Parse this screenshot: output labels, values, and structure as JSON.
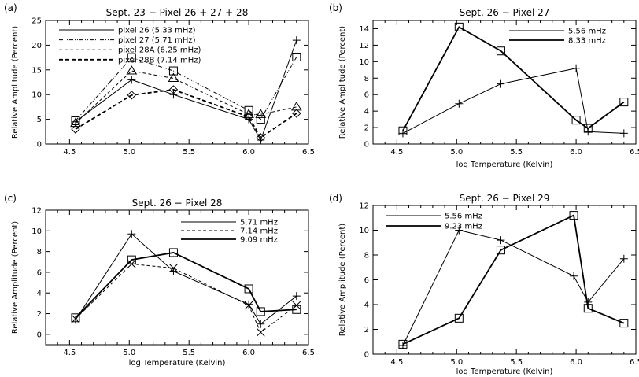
{
  "chart_data": [
    {
      "type": "line",
      "panel_label": "(a)",
      "title": "Sept. 23 − Pixel 26 + 27 + 28",
      "xlabel": "",
      "ylabel": "Relative Amplitude (Percent)",
      "xlim": [
        4.3,
        6.5
      ],
      "ylim": [
        0,
        25
      ],
      "xticks": [
        4.5,
        5.0,
        5.5,
        6.0,
        6.5
      ],
      "xtick_labels": [
        "4.5",
        "5.0",
        "5.5",
        "6.0",
        "6.5"
      ],
      "yticks": [
        0,
        5,
        10,
        15,
        20,
        25
      ],
      "ytick_labels": [
        "0",
        "5",
        "10",
        "15",
        "20",
        "25"
      ],
      "legend_position": "top-right",
      "series": [
        {
          "name": "pixel 26 (5.33 mHz)",
          "line": "solid",
          "marker": "plus",
          "x": [
            4.55,
            5.02,
            5.37,
            6.0,
            6.1,
            6.4
          ],
          "y": [
            4.5,
            13.0,
            10.0,
            5.0,
            0.8,
            21.0
          ]
        },
        {
          "name": "pixel 27 (5.71 mHz)",
          "line": "dashdotdot",
          "marker": "square",
          "x": [
            4.55,
            5.02,
            5.37,
            6.0,
            6.1,
            6.4
          ],
          "y": [
            4.7,
            17.5,
            14.8,
            6.8,
            5.0,
            17.6
          ]
        },
        {
          "name": "pixel 28A (6.25 mHz)",
          "line": "dashed",
          "marker": "triangle",
          "x": [
            4.55,
            5.02,
            5.37,
            6.0,
            6.1,
            6.4
          ],
          "y": [
            4.2,
            14.8,
            13.3,
            6.0,
            6.0,
            7.5
          ]
        },
        {
          "name": "pixel 28B (7.14 mHz)",
          "line": "dashed-thick",
          "marker": "diamond",
          "x": [
            4.55,
            5.02,
            5.37,
            6.0,
            6.1,
            6.4
          ],
          "y": [
            3.0,
            9.9,
            11.0,
            5.5,
            1.3,
            6.2
          ]
        }
      ]
    },
    {
      "type": "line",
      "panel_label": "(b)",
      "title": "Sept. 26 − Pixel 27",
      "xlabel": "log Temperature (Kelvin)",
      "ylabel": "Relative Amplitude (Percent)",
      "xlim": [
        4.3,
        6.5
      ],
      "ylim": [
        0,
        15
      ],
      "xticks": [
        4.5,
        5.0,
        5.5,
        6.0,
        6.5
      ],
      "xtick_labels": [
        "4.5",
        "5.0",
        "5.5",
        "6.0",
        "6.5"
      ],
      "yticks": [
        0,
        2,
        4,
        6,
        8,
        10,
        12,
        14
      ],
      "ytick_labels": [
        "0",
        "2",
        "4",
        "6",
        "8",
        "10",
        "12",
        "14"
      ],
      "legend_position": "top-right",
      "series": [
        {
          "name": "5.56 mHz",
          "line": "solid",
          "marker": "plus",
          "x": [
            4.55,
            5.02,
            5.37,
            6.0,
            6.1,
            6.4
          ],
          "y": [
            1.3,
            4.9,
            7.3,
            9.2,
            1.5,
            1.3
          ]
        },
        {
          "name": "8.33 mHz",
          "line": "thick",
          "marker": "square",
          "x": [
            4.55,
            5.02,
            5.37,
            6.0,
            6.1,
            6.4
          ],
          "y": [
            1.6,
            14.2,
            11.3,
            2.9,
            1.9,
            5.1
          ]
        }
      ]
    },
    {
      "type": "line",
      "panel_label": "(c)",
      "title": "Sept. 26 − Pixel 28",
      "xlabel": "log Temperature (Kelvin)",
      "ylabel": "Relative Amplitude (Percent)",
      "xlim": [
        4.3,
        6.5
      ],
      "ylim": [
        -1,
        12
      ],
      "xticks": [
        4.5,
        5.0,
        5.5,
        6.0,
        6.5
      ],
      "xtick_labels": [
        "4.5",
        "5.0",
        "5.5",
        "6.0",
        "6.5"
      ],
      "yticks": [
        0,
        2,
        4,
        6,
        8,
        10,
        12
      ],
      "ytick_labels": [
        "0",
        "2",
        "4",
        "6",
        "8",
        "10",
        "12"
      ],
      "legend_position": "top-right",
      "series": [
        {
          "name": "5.71 mHz",
          "line": "solid",
          "marker": "plus",
          "x": [
            4.55,
            5.02,
            5.37,
            6.0,
            6.1,
            6.4
          ],
          "y": [
            1.4,
            9.7,
            6.1,
            2.9,
            1.0,
            3.7
          ]
        },
        {
          "name": "7.14 mHz",
          "line": "dashed",
          "marker": "cross",
          "x": [
            4.55,
            5.02,
            5.37,
            6.0,
            6.1,
            6.4
          ],
          "y": [
            1.5,
            6.8,
            6.4,
            2.8,
            0.2,
            2.8
          ]
        },
        {
          "name": "9.09 mHz",
          "line": "thick",
          "marker": "square",
          "x": [
            4.55,
            5.02,
            5.37,
            6.0,
            6.1,
            6.4
          ],
          "y": [
            1.6,
            7.2,
            7.9,
            4.4,
            2.2,
            2.4
          ]
        }
      ]
    },
    {
      "type": "line",
      "panel_label": "(d)",
      "title": "Sept. 26 − Pixel 29",
      "xlabel": "log Temperature (Kelvin)",
      "ylabel": "Relative Amplitude (Percent)",
      "xlim": [
        4.3,
        6.5
      ],
      "ylim": [
        0,
        12
      ],
      "xticks": [
        4.5,
        5.0,
        5.5,
        6.0,
        6.5
      ],
      "xtick_labels": [
        "4.5",
        "5.0",
        "5.5",
        "6.0",
        "6.5"
      ],
      "yticks": [
        0,
        2,
        4,
        6,
        8,
        10,
        12
      ],
      "ytick_labels": [
        "0",
        "2",
        "4",
        "6",
        "8",
        "10",
        "12"
      ],
      "legend_position": "top-left",
      "series": [
        {
          "name": "5.56 mHz",
          "line": "solid",
          "marker": "plus",
          "x": [
            4.55,
            5.02,
            5.37,
            5.98,
            6.1,
            6.4
          ],
          "y": [
            0.7,
            10.0,
            9.2,
            6.3,
            4.2,
            7.7
          ]
        },
        {
          "name": "9.23 mHz",
          "line": "thick",
          "marker": "square",
          "x": [
            4.55,
            5.02,
            5.37,
            5.98,
            6.1,
            6.4
          ],
          "y": [
            0.8,
            2.9,
            8.4,
            11.2,
            3.7,
            2.5
          ]
        }
      ]
    }
  ]
}
